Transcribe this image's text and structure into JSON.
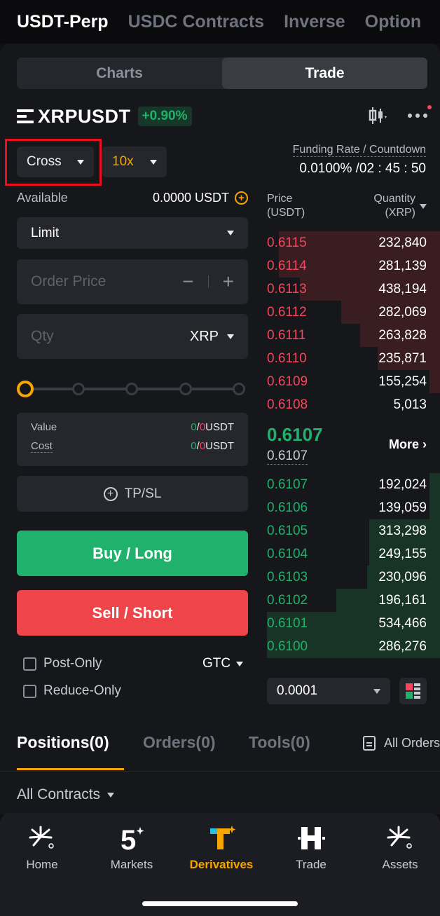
{
  "top_tabs": [
    {
      "label": "USDT-Perp",
      "active": true
    },
    {
      "label": "USDC Contracts",
      "active": false
    },
    {
      "label": "Inverse",
      "active": false
    },
    {
      "label": "Option",
      "active": false
    }
  ],
  "segment": {
    "charts": "Charts",
    "trade": "Trade",
    "active": "Trade"
  },
  "symbol": {
    "name": "XRPUSDT",
    "change": "+0.90%"
  },
  "margin_mode": "Cross",
  "leverage": "10x",
  "funding": {
    "label": "Funding Rate / Countdown",
    "value": "0.0100% /02 : 45 : 50"
  },
  "available": {
    "label": "Available",
    "value": "0.0000 USDT"
  },
  "order_type": "Limit",
  "order_price": {
    "placeholder": "Order Price",
    "minus": "−",
    "plus": "+"
  },
  "qty": {
    "placeholder": "Qty",
    "unit": "XRP"
  },
  "slider": {
    "value_percent": 0,
    "stops": 5
  },
  "value_cost": {
    "value_label": "Value",
    "value_long": "0",
    "value_sep": "/",
    "value_short": "0",
    "value_unit": "USDT",
    "cost_label": "Cost",
    "cost_long": "0",
    "cost_sep": "/",
    "cost_short": "0",
    "cost_unit": "USDT"
  },
  "tpsl": {
    "label": "TP/SL"
  },
  "buttons": {
    "buy": "Buy / Long",
    "sell": "Sell / Short"
  },
  "options": {
    "post_only": "Post-Only",
    "reduce_only": "Reduce-Only",
    "tif": "GTC"
  },
  "orderbook": {
    "price_header": "Price",
    "price_unit": "(USDT)",
    "qty_header": "Quantity",
    "qty_unit": "(XRP)",
    "asks": [
      {
        "price": "0.6115",
        "qty": "232,840",
        "depth": 0.93
      },
      {
        "price": "0.6114",
        "qty": "281,139",
        "depth": 0.93
      },
      {
        "price": "0.6113",
        "qty": "438,194",
        "depth": 0.81
      },
      {
        "price": "0.6112",
        "qty": "282,069",
        "depth": 0.57
      },
      {
        "price": "0.6111",
        "qty": "263,828",
        "depth": 0.46
      },
      {
        "price": "0.6110",
        "qty": "235,871",
        "depth": 0.36
      },
      {
        "price": "0.6109",
        "qty": "155,254",
        "depth": 0.06
      },
      {
        "price": "0.6108",
        "qty": "5,013",
        "depth": 0.0
      }
    ],
    "last_price": "0.6107",
    "mark_price": "0.6107",
    "more": "More",
    "bids": [
      {
        "price": "0.6107",
        "qty": "192,024",
        "depth": 0.06
      },
      {
        "price": "0.6106",
        "qty": "139,059",
        "depth": 0.06
      },
      {
        "price": "0.6105",
        "qty": "313,298",
        "depth": 0.41
      },
      {
        "price": "0.6104",
        "qty": "249,155",
        "depth": 0.41
      },
      {
        "price": "0.6103",
        "qty": "230,096",
        "depth": 0.42
      },
      {
        "price": "0.6102",
        "qty": "196,161",
        "depth": 0.6
      },
      {
        "price": "0.6101",
        "qty": "534,466",
        "depth": 1.0
      },
      {
        "price": "0.6100",
        "qty": "286,276",
        "depth": 1.0
      }
    ],
    "precision": "0.0001"
  },
  "positions_tabs": {
    "positions": "Positions(0)",
    "orders": "Orders(0)",
    "tools": "Tools(0)",
    "all_orders": "All Orders"
  },
  "all_contracts": "All Contracts",
  "bottom_nav": [
    {
      "label": "Home",
      "icon": "home-sparkle-icon"
    },
    {
      "label": "Markets",
      "icon": "markets-5-icon"
    },
    {
      "label": "Derivatives",
      "icon": "derivatives-t-icon",
      "active": true
    },
    {
      "label": "Trade",
      "icon": "trade-h-icon"
    },
    {
      "label": "Assets",
      "icon": "assets-sparkle-icon"
    }
  ],
  "colors": {
    "green": "#20b26c",
    "red": "#f6465d",
    "accent": "#f7a600",
    "highlight": "#e8101c"
  }
}
